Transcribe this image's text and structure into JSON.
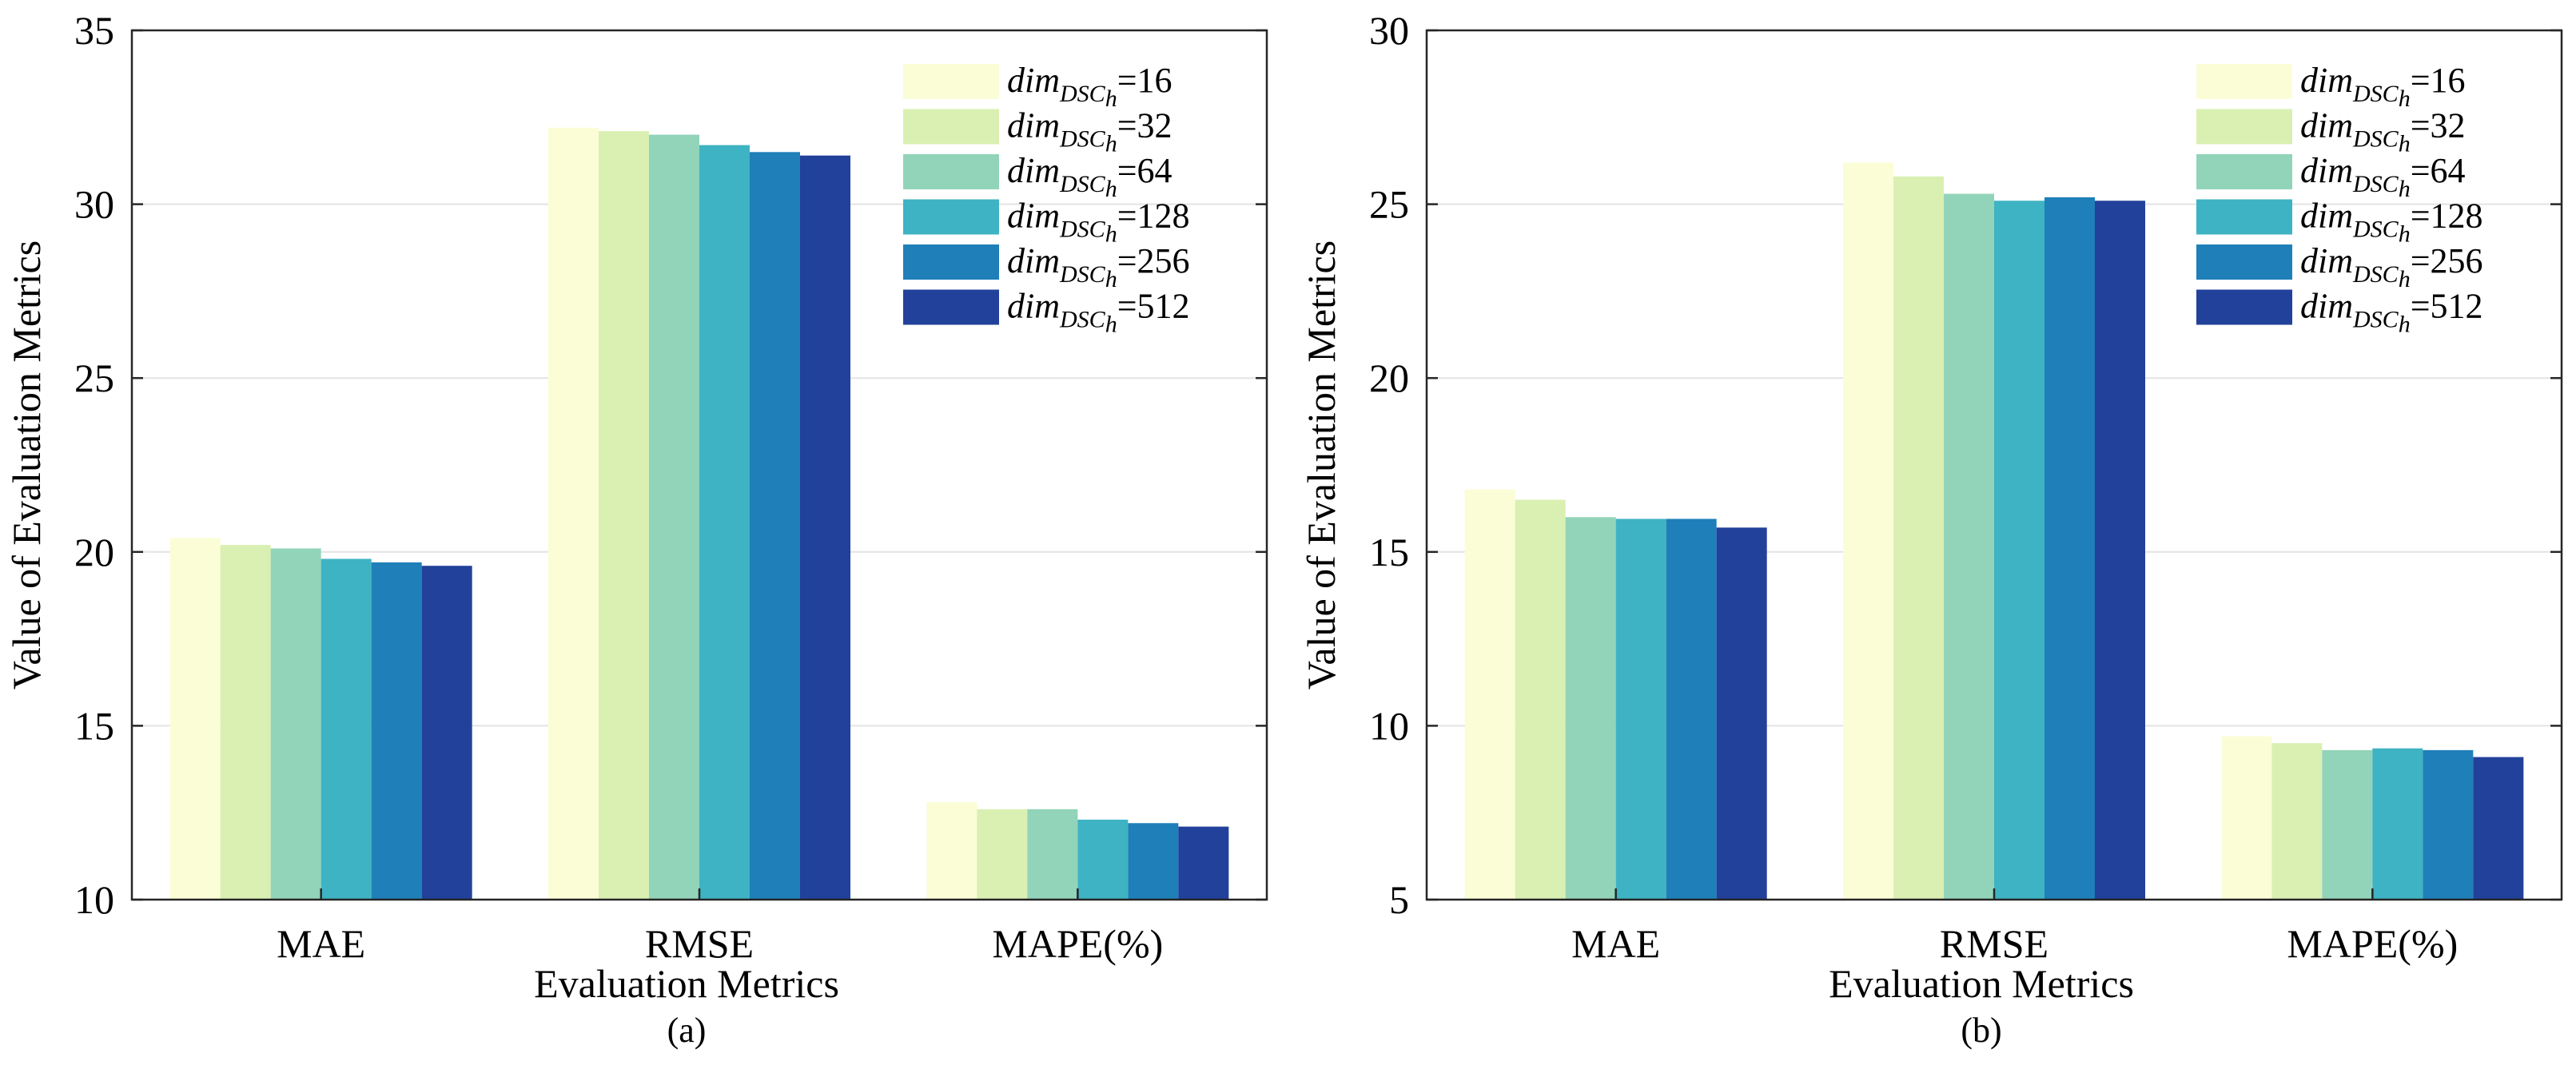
{
  "chart_data": [
    {
      "type": "bar",
      "panel_label": "(a)",
      "categories": [
        "MAE",
        "RMSE",
        "MAPE(%)"
      ],
      "xlabel": "Evaluation Metrics",
      "ylabel": "Value of Evaluation Metrics",
      "ylim": [
        10,
        35
      ],
      "yticks": [
        10,
        15,
        20,
        25,
        30,
        35
      ],
      "grid": "y",
      "legend_placement": "top-right",
      "series": [
        {
          "name": {
            "base": "dim",
            "sub": "DSC",
            "subsub": "h",
            "eq": "=16"
          },
          "color": "#fbfdd6",
          "values": [
            20.4,
            32.2,
            12.8
          ]
        },
        {
          "name": {
            "base": "dim",
            "sub": "DSC",
            "subsub": "h",
            "eq": "=32"
          },
          "color": "#d9f0b2",
          "values": [
            20.2,
            32.1,
            12.6
          ]
        },
        {
          "name": {
            "base": "dim",
            "sub": "DSC",
            "subsub": "h",
            "eq": "=64"
          },
          "color": "#92d4b9",
          "values": [
            20.1,
            32.0,
            12.6
          ]
        },
        {
          "name": {
            "base": "dim",
            "sub": "DSC",
            "subsub": "h",
            "eq": "=128"
          },
          "color": "#3eb3c3",
          "values": [
            19.8,
            31.7,
            12.3
          ]
        },
        {
          "name": {
            "base": "dim",
            "sub": "DSC",
            "subsub": "h",
            "eq": "=256"
          },
          "color": "#1f7fb8",
          "values": [
            19.7,
            31.5,
            12.2
          ]
        },
        {
          "name": {
            "base": "dim",
            "sub": "DSC",
            "subsub": "h",
            "eq": "=512"
          },
          "color": "#22419a",
          "values": [
            19.6,
            31.4,
            12.1
          ]
        }
      ]
    },
    {
      "type": "bar",
      "panel_label": "(b)",
      "categories": [
        "MAE",
        "RMSE",
        "MAPE(%)"
      ],
      "xlabel": "Evaluation Metrics",
      "ylabel": "Value of Evaluation Metrics",
      "ylim": [
        5,
        30
      ],
      "yticks": [
        5,
        10,
        15,
        20,
        25,
        30
      ],
      "grid": "y",
      "legend_placement": "top-right",
      "series": [
        {
          "name": {
            "base": "dim",
            "sub": "DSC",
            "subsub": "h",
            "eq": "=16"
          },
          "color": "#fbfdd6",
          "values": [
            16.8,
            26.2,
            9.7
          ]
        },
        {
          "name": {
            "base": "dim",
            "sub": "DSC",
            "subsub": "h",
            "eq": "=32"
          },
          "color": "#d9f0b2",
          "values": [
            16.5,
            25.8,
            9.5
          ]
        },
        {
          "name": {
            "base": "dim",
            "sub": "DSC",
            "subsub": "h",
            "eq": "=64"
          },
          "color": "#92d4b9",
          "values": [
            16.0,
            25.3,
            9.3
          ]
        },
        {
          "name": {
            "base": "dim",
            "sub": "DSC",
            "subsub": "h",
            "eq": "=128"
          },
          "color": "#3eb3c3",
          "values": [
            15.95,
            25.1,
            9.35
          ]
        },
        {
          "name": {
            "base": "dim",
            "sub": "DSC",
            "subsub": "h",
            "eq": "=256"
          },
          "color": "#1f7fb8",
          "values": [
            15.95,
            25.2,
            9.3
          ]
        },
        {
          "name": {
            "base": "dim",
            "sub": "DSC",
            "subsub": "h",
            "eq": "=512"
          },
          "color": "#22419a",
          "values": [
            15.7,
            25.1,
            9.1
          ]
        }
      ]
    }
  ]
}
